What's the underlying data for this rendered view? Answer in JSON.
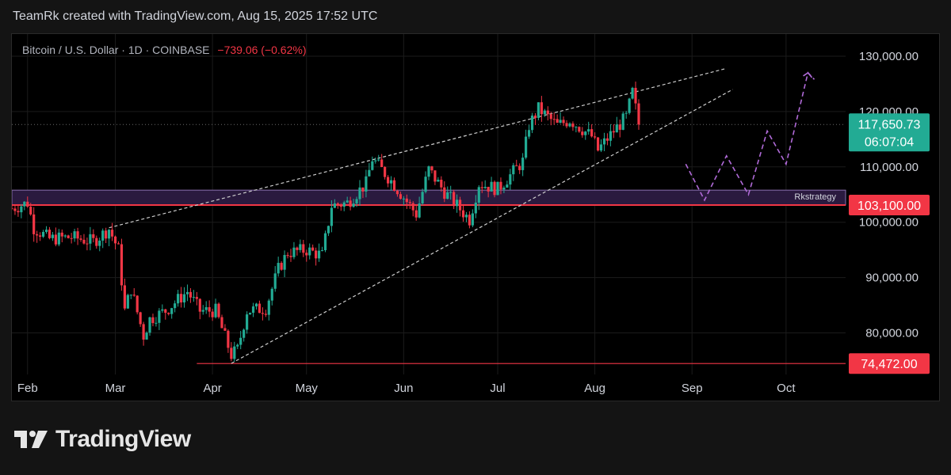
{
  "header": {
    "text": "TeamRk created with TradingView.com, Aug 15, 2025 17:52 UTC"
  },
  "symbol": {
    "name": "Bitcoin / U.S. Dollar · 1D · COINBASE",
    "change": "−739.06 (−0.62%)"
  },
  "footer": {
    "brand": "TradingView"
  },
  "colors": {
    "up": "#22ab94",
    "down": "#f23645",
    "zone": "#2a1a3f",
    "zone_border": "#8a6fb0",
    "support": "#f23645",
    "projection": "#b06ad8",
    "trend": "#cfcfcf",
    "grid": "#1b1b1b",
    "current_price_bg": "#22ab94",
    "level_bg": "#f23645"
  },
  "chart_data": {
    "type": "candlestick",
    "x_axis": {
      "type": "date",
      "range": [
        "2025-01-27",
        "2025-10-20"
      ],
      "ticks": [
        {
          "date": "2025-02-01",
          "label": "Feb"
        },
        {
          "date": "2025-03-01",
          "label": "Mar"
        },
        {
          "date": "2025-04-01",
          "label": "Apr"
        },
        {
          "date": "2025-05-01",
          "label": "May"
        },
        {
          "date": "2025-06-01",
          "label": "Jun"
        },
        {
          "date": "2025-07-01",
          "label": "Jul"
        },
        {
          "date": "2025-08-01",
          "label": "Aug"
        },
        {
          "date": "2025-09-01",
          "label": "Sep"
        },
        {
          "date": "2025-10-01",
          "label": "Oct"
        }
      ]
    },
    "y_axis": {
      "range": [
        72500,
        134000
      ],
      "ticks": [
        {
          "value": 80000,
          "label": "80,000.00"
        },
        {
          "value": 90000,
          "label": "90,000.00"
        },
        {
          "value": 100000,
          "label": "100,000.00"
        },
        {
          "value": 110000,
          "label": "110,000.00"
        },
        {
          "value": 120000,
          "label": "120,000.00"
        },
        {
          "value": 130000,
          "label": "130,000.00"
        }
      ]
    },
    "price_path": [
      [
        "2025-01-27",
        102500
      ],
      [
        "2025-02-01",
        103500
      ],
      [
        "2025-02-03",
        99000
      ],
      [
        "2025-02-08",
        97000
      ],
      [
        "2025-02-15",
        97300
      ],
      [
        "2025-02-22",
        96500
      ],
      [
        "2025-02-27",
        98800
      ],
      [
        "2025-03-02",
        95000
      ],
      [
        "2025-03-04",
        84000
      ],
      [
        "2025-03-06",
        88000
      ],
      [
        "2025-03-10",
        79500
      ],
      [
        "2025-03-12",
        82500
      ],
      [
        "2025-03-17",
        84000
      ],
      [
        "2025-03-24",
        87500
      ],
      [
        "2025-03-28",
        84000
      ],
      [
        "2025-04-02",
        84000
      ],
      [
        "2025-04-07",
        76000
      ],
      [
        "2025-04-09",
        77000
      ],
      [
        "2025-04-12",
        84000
      ],
      [
        "2025-04-18",
        84500
      ],
      [
        "2025-04-22",
        91500
      ],
      [
        "2025-04-25",
        94500
      ],
      [
        "2025-05-01",
        95000
      ],
      [
        "2025-05-06",
        94000
      ],
      [
        "2025-05-09",
        103000
      ],
      [
        "2025-05-14",
        103500
      ],
      [
        "2025-05-20",
        107000
      ],
      [
        "2025-05-22",
        111500
      ],
      [
        "2025-05-28",
        107500
      ],
      [
        "2025-06-05",
        101500
      ],
      [
        "2025-06-09",
        109500
      ],
      [
        "2025-06-14",
        105500
      ],
      [
        "2025-06-22",
        100500
      ],
      [
        "2025-06-25",
        107000
      ],
      [
        "2025-07-01",
        106000
      ],
      [
        "2025-07-05",
        108500
      ],
      [
        "2025-07-09",
        111000
      ],
      [
        "2025-07-11",
        117500
      ],
      [
        "2025-07-14",
        120500
      ],
      [
        "2025-07-20",
        117500
      ],
      [
        "2025-07-24",
        118500
      ],
      [
        "2025-07-31",
        115500
      ],
      [
        "2025-08-02",
        113000
      ],
      [
        "2025-08-07",
        116500
      ],
      [
        "2025-08-11",
        119000
      ],
      [
        "2025-08-13",
        123500
      ],
      [
        "2025-08-15",
        117650
      ]
    ],
    "last_price": {
      "value": 117650.73,
      "label": "117,650.73",
      "countdown": "06:07:04"
    },
    "levels": [
      {
        "name": "resistance-zone",
        "from": 103100,
        "to": 105800,
        "label": "Rkstrategy"
      },
      {
        "name": "zone-level",
        "value": 103100,
        "label": "103,100.00"
      },
      {
        "name": "low-level",
        "value": 74472,
        "label": "74,472.00",
        "from_date": "2025-03-27"
      }
    ],
    "trendlines": [
      {
        "name": "upper-trendline",
        "p1": [
          "2025-02-27",
          99000
        ],
        "p2": [
          "2025-09-12",
          127800
        ]
      },
      {
        "name": "lower-trendline",
        "p1": [
          "2025-04-07",
          74500
        ],
        "p2": [
          "2025-09-14",
          124000
        ]
      }
    ],
    "projection": [
      [
        "2025-08-30",
        110500
      ],
      [
        "2025-09-05",
        104000
      ],
      [
        "2025-09-12",
        112000
      ],
      [
        "2025-09-19",
        105000
      ],
      [
        "2025-09-25",
        116500
      ],
      [
        "2025-10-01",
        110500
      ],
      [
        "2025-10-08",
        127000
      ],
      [
        "2025-10-10",
        125800
      ]
    ]
  }
}
